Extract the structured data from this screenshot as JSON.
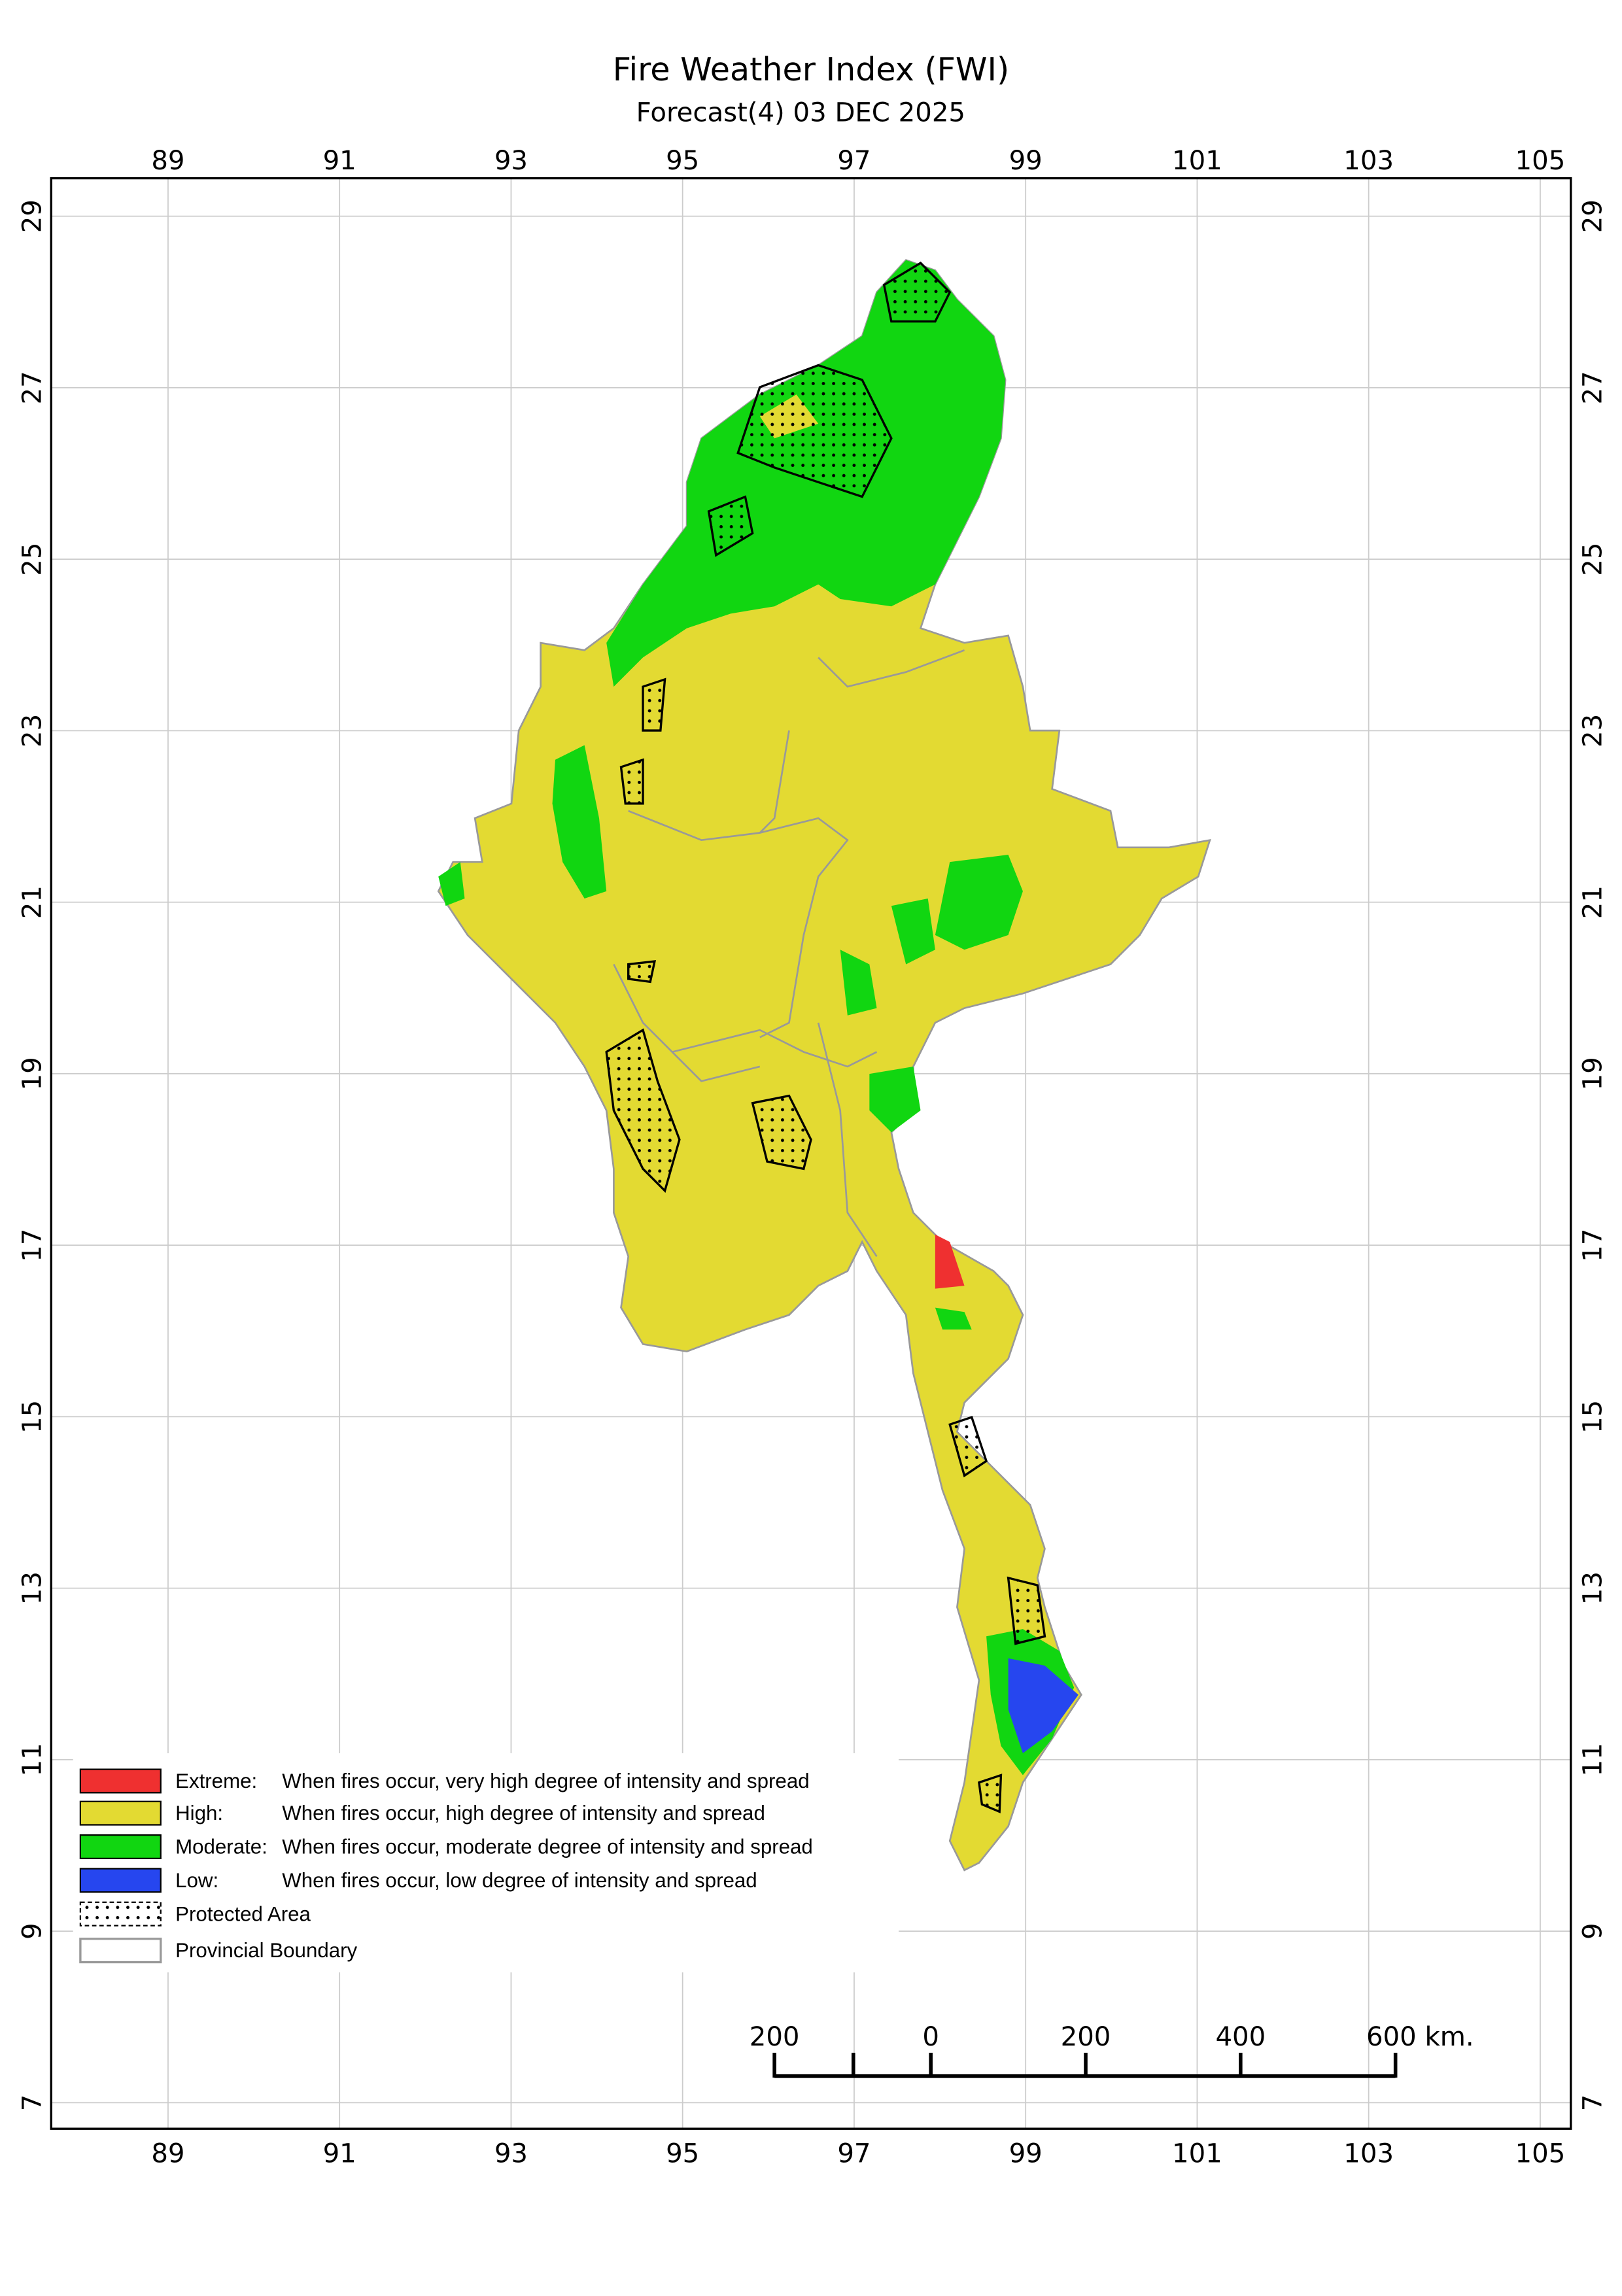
{
  "header": {
    "title": "Fire Weather Index (FWI)",
    "subtitle": "Forecast(4) 03 DEC 2025"
  },
  "map": {
    "lon_ticks": [
      89,
      91,
      93,
      95,
      97,
      99,
      101,
      103,
      105
    ],
    "lat_ticks": [
      29,
      27,
      25,
      23,
      21,
      19,
      17,
      15,
      13,
      11,
      9,
      7
    ]
  },
  "legend": {
    "items": [
      {
        "label": "Extreme:",
        "description": "When fires occur, very high degree of intensity and spread"
      },
      {
        "label": "High:",
        "description": "When fires occur, high degree of intensity and spread"
      },
      {
        "label": "Moderate:",
        "description": "When fires occur, moderate degree of intensity and spread"
      },
      {
        "label": "Low:",
        "description": "When fires occur, low degree of intensity and spread"
      },
      {
        "label": "Protected Area"
      },
      {
        "label": "Provincial Boundary"
      }
    ]
  },
  "scale_bar": {
    "labels": [
      "200",
      "0",
      "200",
      "400",
      "600 km."
    ]
  }
}
